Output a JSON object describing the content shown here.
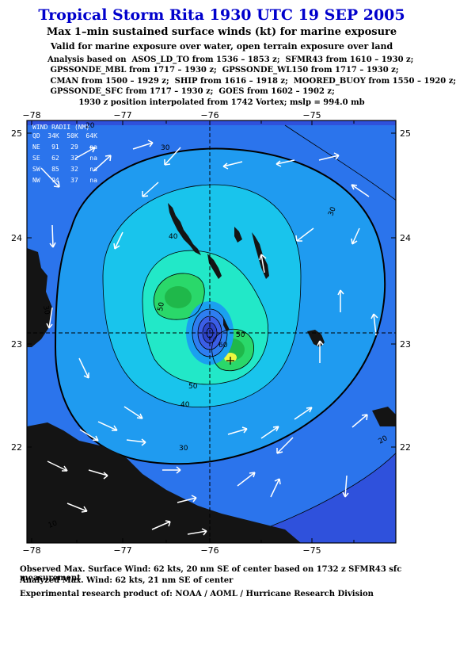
{
  "header": {
    "title": "Tropical Storm Rita 1930 UTC 19 SEP 2005",
    "subtitle": "Max 1–min sustained surface winds (kt) for marine exposure",
    "valid_note": "Valid for marine exposure over water, open terrain exposure over land",
    "analysis_lines": [
      "Analysis based on  ASOS_LD_TO from 1536 – 1853 z;  SFMR43 from 1610 – 1930 z;",
      " GPSSONDE_MBL from 1717 – 1930 z;  GPSSONDE_WL150 from 1717 – 1930 z;",
      " CMAN from 1500 – 1929 z;  SHIP from 1616 – 1918 z;  MOORED_BUOY from 1550 – 1920 z;",
      " GPSSONDE_SFC from 1717 – 1930 z;  GOES from 1602 – 1902 z;"
    ],
    "position_note": "1930 z position interpolated from 1742 Vortex; mslp = 994.0 mb"
  },
  "map": {
    "lon_labels": [
      "−78",
      "−77",
      "−76",
      "−75"
    ],
    "lat_labels": [
      "25",
      "24",
      "23",
      "22"
    ],
    "colors": {
      "outer": "#2f51dc",
      "band20": "#2b74ec",
      "band30": "#1f9bf0",
      "band40": "#19c4ec",
      "band50": "#22e8c8",
      "band60": "#2ad86a",
      "core": "#1fb84a",
      "max": "#ecf840",
      "land": "#141414"
    },
    "contour_labels": [
      "30",
      "30",
      "30",
      "40",
      "40",
      "50",
      "50",
      "50",
      "60",
      "30",
      "20",
      "20",
      "10"
    ]
  },
  "wind_radii": {
    "title": "WIND RADII (NM)",
    "header": "QD  34K  50K  64K",
    "rows": [
      "NE   91   29   na",
      "SE   62   32   na",
      "SW   85   32   na",
      "NW   94   37   na"
    ]
  },
  "footer": {
    "observed": "Observed Max. Surface Wind: 62 kts, 20 nm SE of center based on 1732 z SFMR43 sfc measurement",
    "analyzed": "Analyzed Max. Wind: 62 kts, 21 nm SE of center",
    "product": "Experimental research product of:  NOAA / AOML / Hurricane Research Division"
  }
}
